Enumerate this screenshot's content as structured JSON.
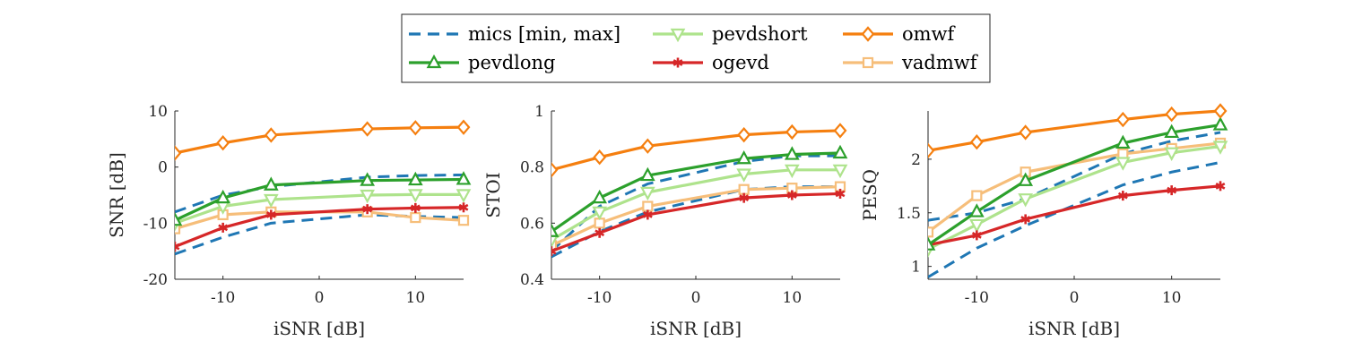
{
  "legend": {
    "placement": "top-center",
    "entries": [
      {
        "name": "mics [min, max]",
        "color": "#1f77b4",
        "dashed": true,
        "marker": "none"
      },
      {
        "name": "pevdshort",
        "color": "#aee38c",
        "dashed": false,
        "marker": "triangle-down"
      },
      {
        "name": "omwf",
        "color": "#f57f0f",
        "dashed": false,
        "marker": "diamond"
      },
      {
        "name": "pevdlong",
        "color": "#2ca02c",
        "dashed": false,
        "marker": "triangle-up"
      },
      {
        "name": "ogevd",
        "color": "#d62728",
        "dashed": false,
        "marker": "asterisk"
      },
      {
        "name": "vadmwf",
        "color": "#f6be7a",
        "dashed": false,
        "marker": "square"
      }
    ]
  },
  "chart_data": [
    {
      "type": "line",
      "xlabel": "iSNR [dB]",
      "ylabel": "SNR [dB]",
      "xlim": [
        -15,
        15
      ],
      "ylim": [
        -20,
        10
      ],
      "xticks": [
        -10,
        0,
        10
      ],
      "yticks": [
        -20,
        -10,
        0,
        10
      ],
      "grid": false,
      "x": [
        -15,
        -10,
        -5,
        5,
        10,
        15
      ],
      "series": [
        {
          "name": "mics [min, max]",
          "style": "dashed",
          "values": [
            -8,
            -5,
            -3.5,
            -1.8,
            -1.5,
            -1.4
          ]
        },
        {
          "name": "mics [min, max]",
          "style": "dashed",
          "values": [
            -15.5,
            -12.5,
            -10,
            -8.5,
            -8.8,
            -9
          ]
        },
        {
          "name": "omwf",
          "values": [
            2.5,
            4.3,
            5.7,
            6.8,
            7,
            7.1
          ]
        },
        {
          "name": "pevdlong",
          "values": [
            -9.5,
            -5.5,
            -3.2,
            -2.4,
            -2.3,
            -2.2
          ]
        },
        {
          "name": "pevdshort",
          "values": [
            -10,
            -7,
            -5.8,
            -5,
            -4.9,
            -4.9
          ]
        },
        {
          "name": "vadmwf",
          "values": [
            -11,
            -8.5,
            -8,
            -8,
            -9,
            -9.5
          ]
        },
        {
          "name": "ogevd",
          "values": [
            -14.2,
            -10.8,
            -8.5,
            -7.5,
            -7.3,
            -7.2
          ]
        }
      ]
    },
    {
      "type": "line",
      "xlabel": "iSNR [dB]",
      "ylabel": "STOI",
      "xlim": [
        -15,
        15
      ],
      "ylim": [
        0.4,
        1
      ],
      "xticks": [
        -10,
        0,
        10
      ],
      "yticks": [
        0.4,
        0.6,
        0.8,
        1
      ],
      "grid": false,
      "x": [
        -15,
        -10,
        -5,
        5,
        10,
        15
      ],
      "series": [
        {
          "name": "mics [min, max]",
          "style": "dashed",
          "values": [
            0.5,
            0.66,
            0.74,
            0.82,
            0.84,
            0.84
          ]
        },
        {
          "name": "mics [min, max]",
          "style": "dashed",
          "values": [
            0.48,
            0.57,
            0.64,
            0.72,
            0.73,
            0.73
          ]
        },
        {
          "name": "omwf",
          "values": [
            0.79,
            0.835,
            0.875,
            0.915,
            0.925,
            0.93
          ]
        },
        {
          "name": "pevdlong",
          "values": [
            0.57,
            0.69,
            0.77,
            0.83,
            0.845,
            0.85
          ]
        },
        {
          "name": "pevdshort",
          "values": [
            0.54,
            0.64,
            0.71,
            0.775,
            0.79,
            0.79
          ]
        },
        {
          "name": "vadmwf",
          "values": [
            0.52,
            0.6,
            0.66,
            0.72,
            0.725,
            0.73
          ]
        },
        {
          "name": "ogevd",
          "values": [
            0.5,
            0.565,
            0.63,
            0.69,
            0.7,
            0.705
          ]
        }
      ]
    },
    {
      "type": "line",
      "xlabel": "iSNR [dB]",
      "ylabel": "PESQ",
      "xlim": [
        -15,
        15
      ],
      "ylim": [
        0.88,
        2.45
      ],
      "xticks": [
        -10,
        0,
        10
      ],
      "yticks": [
        1,
        1.5,
        2
      ],
      "grid": false,
      "x": [
        -15,
        -10,
        -5,
        5,
        10,
        15
      ],
      "series": [
        {
          "name": "mics [min, max]",
          "style": "dashed",
          "values": [
            1.43,
            1.5,
            1.63,
            2.05,
            2.17,
            2.25
          ]
        },
        {
          "name": "mics [min, max]",
          "style": "dashed",
          "values": [
            0.9,
            1.17,
            1.38,
            1.76,
            1.88,
            1.97
          ]
        },
        {
          "name": "omwf",
          "values": [
            2.08,
            2.16,
            2.25,
            2.37,
            2.42,
            2.45
          ]
        },
        {
          "name": "pevdlong",
          "values": [
            1.2,
            1.51,
            1.8,
            2.15,
            2.25,
            2.32
          ]
        },
        {
          "name": "pevdshort",
          "values": [
            1.16,
            1.39,
            1.63,
            1.97,
            2.06,
            2.12
          ]
        },
        {
          "name": "vadmwf",
          "values": [
            1.32,
            1.66,
            1.88,
            2.05,
            2.1,
            2.15
          ]
        },
        {
          "name": "ogevd",
          "values": [
            1.2,
            1.29,
            1.44,
            1.66,
            1.71,
            1.75
          ]
        }
      ]
    }
  ]
}
